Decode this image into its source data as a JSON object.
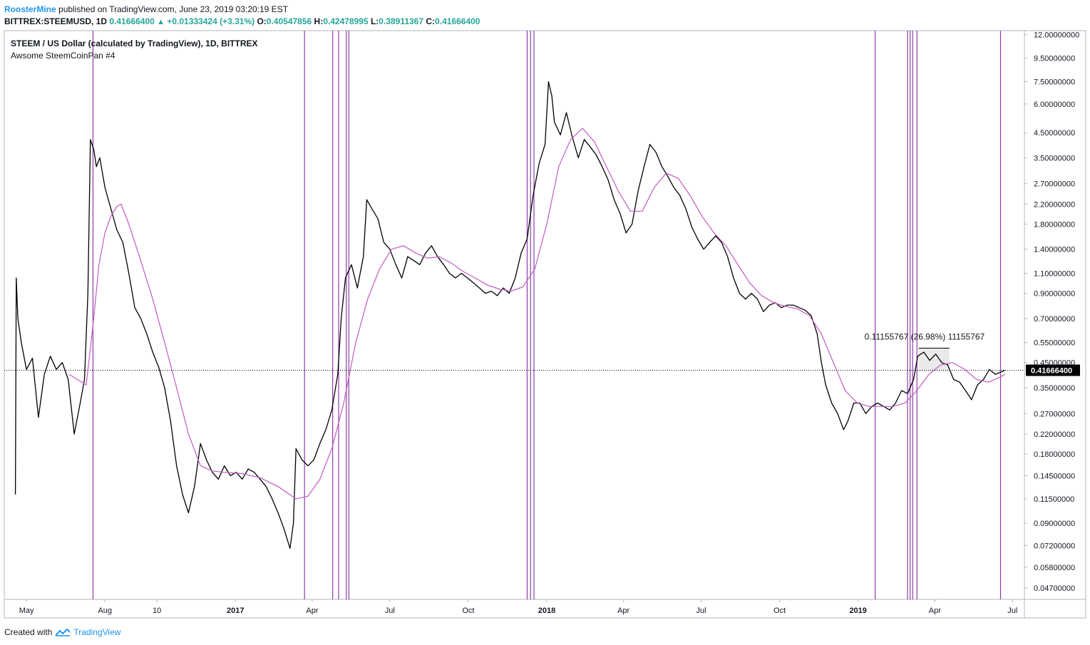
{
  "header": {
    "author": "RoosterMine",
    "published": " published on TradingView.com, June 23, 2019 03:20:19 EST",
    "symbol": "BITTREX:STEEMUSD, 1D",
    "last": "0.41666400",
    "change": "+0.01333424 (+3.31%)",
    "o_label": "O:",
    "o_value": "0.40547856",
    "h_label": "H:",
    "h_value": "0.42478995",
    "l_label": "L:",
    "l_value": "0.38911367",
    "c_label": "C:",
    "c_value": "0.41666400"
  },
  "legend": {
    "title": "STEEM / US Dollar (calculated by TradingView), 1D, BITTREX",
    "study": "Awsome SteemCoinPan #4"
  },
  "footer": {
    "created_with": "Created with",
    "brand": "TradingView"
  },
  "colors": {
    "price": "#000000",
    "ma": "#c05bc0",
    "vline": "#8e3ca8",
    "price_tag_bg": "#000000",
    "price_tag_text": "#ffffff",
    "brand": "#2196f3"
  },
  "chart_data": {
    "type": "line",
    "scale": "log",
    "ylim": [
      0.042,
      12.5
    ],
    "xlim": [
      "2016-04-05",
      "2019-07-15"
    ],
    "y_ticks": [
      "12.00000000",
      "9.50000000",
      "7.50000000",
      "6.00000000",
      "4.50000000",
      "3.50000000",
      "2.70000000",
      "2.20000000",
      "1.80000000",
      "1.40000000",
      "1.10000000",
      "0.90000000",
      "0.70000000",
      "0.55000000",
      "0.45000000",
      "0.35000000",
      "0.27000000",
      "0.22000000",
      "0.18000000",
      "0.14500000",
      "0.11500000",
      "0.09000000",
      "0.07200000",
      "0.05800000",
      "0.04700000"
    ],
    "x_ticks": [
      {
        "label": "May",
        "date": "2016-05-01",
        "bold": false
      },
      {
        "label": "Aug",
        "date": "2016-08-01",
        "bold": false
      },
      {
        "label": "10",
        "date": "2016-10-01",
        "bold": false
      },
      {
        "label": "2017",
        "date": "2017-01-01",
        "bold": true
      },
      {
        "label": "Apr",
        "date": "2017-04-01",
        "bold": false
      },
      {
        "label": "Jul",
        "date": "2017-07-01",
        "bold": false
      },
      {
        "label": "Oct",
        "date": "2017-10-01",
        "bold": false
      },
      {
        "label": "2018",
        "date": "2018-01-01",
        "bold": true
      },
      {
        "label": "Apr",
        "date": "2018-04-01",
        "bold": false
      },
      {
        "label": "Jul",
        "date": "2018-07-01",
        "bold": false
      },
      {
        "label": "Oct",
        "date": "2018-10-01",
        "bold": false
      },
      {
        "label": "2019",
        "date": "2019-01-01",
        "bold": true
      },
      {
        "label": "Apr",
        "date": "2019-04-01",
        "bold": false
      },
      {
        "label": "Jul",
        "date": "2019-07-01",
        "bold": false
      }
    ],
    "current_price": {
      "value": 0.41666,
      "label": "0.41666400"
    },
    "price_series": [
      [
        "2016-04-18",
        0.12
      ],
      [
        "2016-04-19",
        1.05
      ],
      [
        "2016-04-21",
        0.7
      ],
      [
        "2016-04-25",
        0.55
      ],
      [
        "2016-05-01",
        0.42
      ],
      [
        "2016-05-08",
        0.47
      ],
      [
        "2016-05-15",
        0.26
      ],
      [
        "2016-05-22",
        0.4
      ],
      [
        "2016-05-29",
        0.48
      ],
      [
        "2016-06-05",
        0.42
      ],
      [
        "2016-06-12",
        0.45
      ],
      [
        "2016-06-19",
        0.38
      ],
      [
        "2016-06-26",
        0.22
      ],
      [
        "2016-07-03",
        0.3
      ],
      [
        "2016-07-08",
        0.38
      ],
      [
        "2016-07-12",
        0.9
      ],
      [
        "2016-07-15",
        4.2
      ],
      [
        "2016-07-19",
        3.8
      ],
      [
        "2016-07-22",
        3.2
      ],
      [
        "2016-07-26",
        3.5
      ],
      [
        "2016-08-01",
        2.6
      ],
      [
        "2016-08-08",
        2.1
      ],
      [
        "2016-08-15",
        1.7
      ],
      [
        "2016-08-22",
        1.5
      ],
      [
        "2016-08-29",
        1.1
      ],
      [
        "2016-09-05",
        0.78
      ],
      [
        "2016-09-12",
        0.7
      ],
      [
        "2016-09-19",
        0.6
      ],
      [
        "2016-09-26",
        0.5
      ],
      [
        "2016-10-03",
        0.43
      ],
      [
        "2016-10-10",
        0.35
      ],
      [
        "2016-10-17",
        0.25
      ],
      [
        "2016-10-24",
        0.16
      ],
      [
        "2016-10-31",
        0.12
      ],
      [
        "2016-11-07",
        0.1
      ],
      [
        "2016-11-14",
        0.13
      ],
      [
        "2016-11-21",
        0.2
      ],
      [
        "2016-11-28",
        0.17
      ],
      [
        "2016-12-05",
        0.15
      ],
      [
        "2016-12-12",
        0.14
      ],
      [
        "2016-12-19",
        0.16
      ],
      [
        "2016-12-26",
        0.145
      ],
      [
        "2017-01-02",
        0.15
      ],
      [
        "2017-01-09",
        0.14
      ],
      [
        "2017-01-16",
        0.155
      ],
      [
        "2017-01-23",
        0.15
      ],
      [
        "2017-01-30",
        0.14
      ],
      [
        "2017-02-06",
        0.13
      ],
      [
        "2017-02-13",
        0.115
      ],
      [
        "2017-02-20",
        0.1
      ],
      [
        "2017-02-27",
        0.085
      ],
      [
        "2017-03-06",
        0.07
      ],
      [
        "2017-03-10",
        0.09
      ],
      [
        "2017-03-13",
        0.19
      ],
      [
        "2017-03-20",
        0.17
      ],
      [
        "2017-03-27",
        0.16
      ],
      [
        "2017-04-03",
        0.17
      ],
      [
        "2017-04-10",
        0.2
      ],
      [
        "2017-04-17",
        0.23
      ],
      [
        "2017-04-24",
        0.28
      ],
      [
        "2017-05-01",
        0.4
      ],
      [
        "2017-05-05",
        0.7
      ],
      [
        "2017-05-10",
        1.05
      ],
      [
        "2017-05-17",
        1.2
      ],
      [
        "2017-05-24",
        0.95
      ],
      [
        "2017-05-31",
        1.3
      ],
      [
        "2017-06-04",
        2.3
      ],
      [
        "2017-06-10",
        2.1
      ],
      [
        "2017-06-17",
        1.9
      ],
      [
        "2017-06-24",
        1.5
      ],
      [
        "2017-07-01",
        1.4
      ],
      [
        "2017-07-08",
        1.2
      ],
      [
        "2017-07-15",
        1.05
      ],
      [
        "2017-07-22",
        1.3
      ],
      [
        "2017-07-29",
        1.25
      ],
      [
        "2017-08-05",
        1.2
      ],
      [
        "2017-08-12",
        1.35
      ],
      [
        "2017-08-19",
        1.45
      ],
      [
        "2017-08-26",
        1.3
      ],
      [
        "2017-09-02",
        1.2
      ],
      [
        "2017-09-09",
        1.1
      ],
      [
        "2017-09-16",
        1.05
      ],
      [
        "2017-09-23",
        1.1
      ],
      [
        "2017-09-30",
        1.05
      ],
      [
        "2017-10-07",
        1.0
      ],
      [
        "2017-10-14",
        0.95
      ],
      [
        "2017-10-21",
        0.9
      ],
      [
        "2017-10-28",
        0.92
      ],
      [
        "2017-11-04",
        0.88
      ],
      [
        "2017-11-11",
        0.95
      ],
      [
        "2017-11-18",
        0.9
      ],
      [
        "2017-11-25",
        1.05
      ],
      [
        "2017-12-02",
        1.35
      ],
      [
        "2017-12-09",
        1.55
      ],
      [
        "2017-12-16",
        2.4
      ],
      [
        "2017-12-23",
        3.3
      ],
      [
        "2017-12-30",
        4.0
      ],
      [
        "2018-01-03",
        7.5
      ],
      [
        "2018-01-07",
        6.5
      ],
      [
        "2018-01-10",
        5.0
      ],
      [
        "2018-01-17",
        4.4
      ],
      [
        "2018-01-24",
        5.5
      ],
      [
        "2018-01-31",
        4.3
      ],
      [
        "2018-02-07",
        3.5
      ],
      [
        "2018-02-14",
        4.2
      ],
      [
        "2018-02-21",
        3.9
      ],
      [
        "2018-02-28",
        3.6
      ],
      [
        "2018-03-07",
        3.2
      ],
      [
        "2018-03-14",
        2.8
      ],
      [
        "2018-03-21",
        2.3
      ],
      [
        "2018-03-28",
        2.0
      ],
      [
        "2018-04-04",
        1.65
      ],
      [
        "2018-04-11",
        1.8
      ],
      [
        "2018-04-18",
        2.5
      ],
      [
        "2018-04-25",
        3.2
      ],
      [
        "2018-05-02",
        4.0
      ],
      [
        "2018-05-09",
        3.7
      ],
      [
        "2018-05-16",
        3.2
      ],
      [
        "2018-05-23",
        2.9
      ],
      [
        "2018-05-30",
        2.6
      ],
      [
        "2018-06-06",
        2.4
      ],
      [
        "2018-06-13",
        2.1
      ],
      [
        "2018-06-20",
        1.75
      ],
      [
        "2018-06-27",
        1.55
      ],
      [
        "2018-07-04",
        1.4
      ],
      [
        "2018-07-11",
        1.5
      ],
      [
        "2018-07-18",
        1.6
      ],
      [
        "2018-07-25",
        1.5
      ],
      [
        "2018-08-01",
        1.3
      ],
      [
        "2018-08-08",
        1.05
      ],
      [
        "2018-08-15",
        0.9
      ],
      [
        "2018-08-22",
        0.85
      ],
      [
        "2018-08-29",
        0.9
      ],
      [
        "2018-09-05",
        0.85
      ],
      [
        "2018-09-12",
        0.75
      ],
      [
        "2018-09-19",
        0.8
      ],
      [
        "2018-09-26",
        0.82
      ],
      [
        "2018-10-03",
        0.78
      ],
      [
        "2018-10-10",
        0.8
      ],
      [
        "2018-10-17",
        0.8
      ],
      [
        "2018-10-24",
        0.78
      ],
      [
        "2018-10-31",
        0.76
      ],
      [
        "2018-11-07",
        0.72
      ],
      [
        "2018-11-14",
        0.6
      ],
      [
        "2018-11-19",
        0.45
      ],
      [
        "2018-11-24",
        0.36
      ],
      [
        "2018-12-01",
        0.3
      ],
      [
        "2018-12-08",
        0.27
      ],
      [
        "2018-12-15",
        0.23
      ],
      [
        "2018-12-20",
        0.25
      ],
      [
        "2018-12-27",
        0.3
      ],
      [
        "2019-01-03",
        0.3
      ],
      [
        "2019-01-10",
        0.27
      ],
      [
        "2019-01-17",
        0.29
      ],
      [
        "2019-01-24",
        0.3
      ],
      [
        "2019-01-31",
        0.29
      ],
      [
        "2019-02-07",
        0.28
      ],
      [
        "2019-02-14",
        0.3
      ],
      [
        "2019-02-21",
        0.34
      ],
      [
        "2019-02-28",
        0.33
      ],
      [
        "2019-03-07",
        0.38
      ],
      [
        "2019-03-12",
        0.48
      ],
      [
        "2019-03-19",
        0.5
      ],
      [
        "2019-03-26",
        0.46
      ],
      [
        "2019-04-02",
        0.49
      ],
      [
        "2019-04-09",
        0.45
      ],
      [
        "2019-04-16",
        0.44
      ],
      [
        "2019-04-23",
        0.38
      ],
      [
        "2019-04-30",
        0.37
      ],
      [
        "2019-05-07",
        0.34
      ],
      [
        "2019-05-14",
        0.31
      ],
      [
        "2019-05-21",
        0.36
      ],
      [
        "2019-05-28",
        0.38
      ],
      [
        "2019-06-04",
        0.42
      ],
      [
        "2019-06-11",
        0.4
      ],
      [
        "2019-06-18",
        0.41
      ],
      [
        "2019-06-22",
        0.41666
      ]
    ],
    "ma_series": [
      [
        "2016-06-20",
        0.4
      ],
      [
        "2016-07-10",
        0.36
      ],
      [
        "2016-07-18",
        0.65
      ],
      [
        "2016-07-25",
        1.2
      ],
      [
        "2016-08-01",
        1.65
      ],
      [
        "2016-08-08",
        1.95
      ],
      [
        "2016-08-15",
        2.15
      ],
      [
        "2016-08-20",
        2.2
      ],
      [
        "2016-08-29",
        1.8
      ],
      [
        "2016-09-12",
        1.25
      ],
      [
        "2016-09-26",
        0.85
      ],
      [
        "2016-10-10",
        0.55
      ],
      [
        "2016-10-24",
        0.35
      ],
      [
        "2016-11-07",
        0.22
      ],
      [
        "2016-11-21",
        0.16
      ],
      [
        "2016-12-05",
        0.152
      ],
      [
        "2016-12-19",
        0.15
      ],
      [
        "2017-01-09",
        0.148
      ],
      [
        "2017-01-30",
        0.142
      ],
      [
        "2017-02-20",
        0.13
      ],
      [
        "2017-03-13",
        0.115
      ],
      [
        "2017-03-27",
        0.118
      ],
      [
        "2017-04-10",
        0.14
      ],
      [
        "2017-04-24",
        0.19
      ],
      [
        "2017-05-08",
        0.3
      ],
      [
        "2017-05-22",
        0.55
      ],
      [
        "2017-06-05",
        0.85
      ],
      [
        "2017-06-19",
        1.15
      ],
      [
        "2017-07-03",
        1.4
      ],
      [
        "2017-07-17",
        1.45
      ],
      [
        "2017-07-31",
        1.35
      ],
      [
        "2017-08-14",
        1.28
      ],
      [
        "2017-08-28",
        1.3
      ],
      [
        "2017-09-11",
        1.22
      ],
      [
        "2017-09-25",
        1.12
      ],
      [
        "2017-10-09",
        1.05
      ],
      [
        "2017-10-23",
        0.98
      ],
      [
        "2017-11-06",
        0.94
      ],
      [
        "2017-11-20",
        0.92
      ],
      [
        "2017-12-04",
        0.96
      ],
      [
        "2017-12-18",
        1.15
      ],
      [
        "2018-01-01",
        1.8
      ],
      [
        "2018-01-15",
        3.2
      ],
      [
        "2018-01-29",
        4.2
      ],
      [
        "2018-02-12",
        4.7
      ],
      [
        "2018-02-26",
        4.1
      ],
      [
        "2018-03-12",
        3.2
      ],
      [
        "2018-03-26",
        2.5
      ],
      [
        "2018-04-09",
        2.05
      ],
      [
        "2018-04-23",
        2.05
      ],
      [
        "2018-05-07",
        2.6
      ],
      [
        "2018-05-21",
        3.0
      ],
      [
        "2018-06-04",
        2.85
      ],
      [
        "2018-06-18",
        2.4
      ],
      [
        "2018-07-02",
        1.95
      ],
      [
        "2018-07-16",
        1.65
      ],
      [
        "2018-07-30",
        1.45
      ],
      [
        "2018-08-13",
        1.2
      ],
      [
        "2018-08-27",
        1.0
      ],
      [
        "2018-09-10",
        0.88
      ],
      [
        "2018-09-24",
        0.82
      ],
      [
        "2018-10-08",
        0.79
      ],
      [
        "2018-10-22",
        0.77
      ],
      [
        "2018-11-05",
        0.72
      ],
      [
        "2018-11-19",
        0.6
      ],
      [
        "2018-12-03",
        0.45
      ],
      [
        "2018-12-17",
        0.34
      ],
      [
        "2018-12-31",
        0.3
      ],
      [
        "2019-01-14",
        0.29
      ],
      [
        "2019-01-28",
        0.29
      ],
      [
        "2019-02-11",
        0.29
      ],
      [
        "2019-02-25",
        0.3
      ],
      [
        "2019-03-11",
        0.34
      ],
      [
        "2019-03-25",
        0.4
      ],
      [
        "2019-04-08",
        0.44
      ],
      [
        "2019-04-22",
        0.45
      ],
      [
        "2019-05-06",
        0.42
      ],
      [
        "2019-05-20",
        0.38
      ],
      [
        "2019-06-03",
        0.37
      ],
      [
        "2019-06-17",
        0.39
      ],
      [
        "2019-06-22",
        0.4
      ]
    ],
    "vertical_lines": [
      "2016-07-18",
      "2017-03-23",
      "2017-04-25",
      "2017-05-02",
      "2017-05-11",
      "2017-05-14",
      "2017-12-09",
      "2017-12-13",
      "2017-12-17",
      "2019-01-21",
      "2019-02-28",
      "2019-03-03",
      "2019-03-06",
      "2019-03-11",
      "2019-06-17"
    ],
    "measure": {
      "label": "0.11155767 (26.98%) 11155767",
      "x_start": "2019-03-13",
      "x_end": "2019-04-18",
      "y_low": 0.41,
      "y_high": 0.52
    }
  }
}
